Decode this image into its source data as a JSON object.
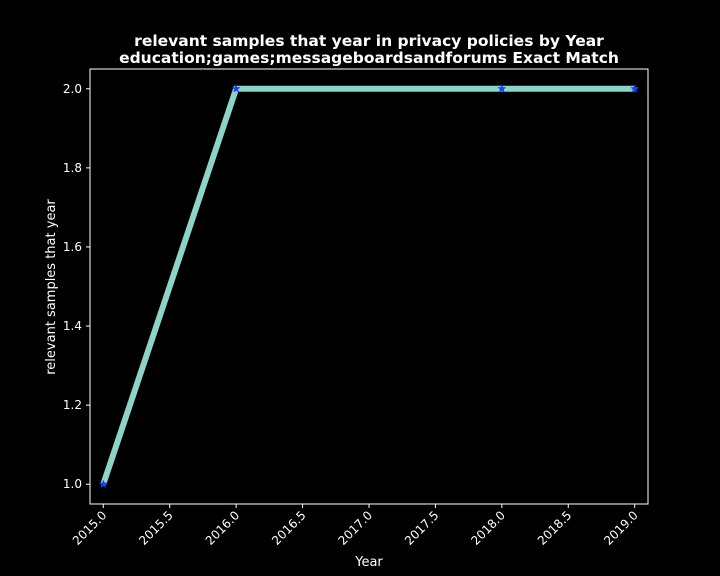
{
  "chart_data": {
    "type": "line",
    "title_line1": "relevant samples that year in privacy policies by Year",
    "title_line2": "education;games;messageboardsandforums Exact Match",
    "xlabel": "Year",
    "ylabel": "relevant samples that year",
    "x": [
      2015,
      2016,
      2018,
      2019
    ],
    "y": [
      1,
      2,
      2,
      2
    ],
    "xlim": [
      2014.9,
      2019.1
    ],
    "ylim": [
      0.95,
      2.05
    ],
    "xticks": [
      2015.0,
      2015.5,
      2016.0,
      2016.5,
      2017.0,
      2017.5,
      2018.0,
      2018.5,
      2019.0
    ],
    "xtick_labels": [
      "2015.0",
      "2015.5",
      "2016.0",
      "2016.5",
      "2017.0",
      "2017.5",
      "2018.0",
      "2018.5",
      "2019.0"
    ],
    "yticks": [
      1.0,
      1.2,
      1.4,
      1.6,
      1.8,
      2.0
    ],
    "ytick_labels": [
      "1.0",
      "1.2",
      "1.4",
      "1.6",
      "1.8",
      "2.0"
    ],
    "grid": false,
    "colors": {
      "background": "#000000",
      "line": "#8dd3c7",
      "marker": "#1f3cff",
      "axes": "#ffffff",
      "text": "#ffffff"
    },
    "marker": "star-icon"
  }
}
